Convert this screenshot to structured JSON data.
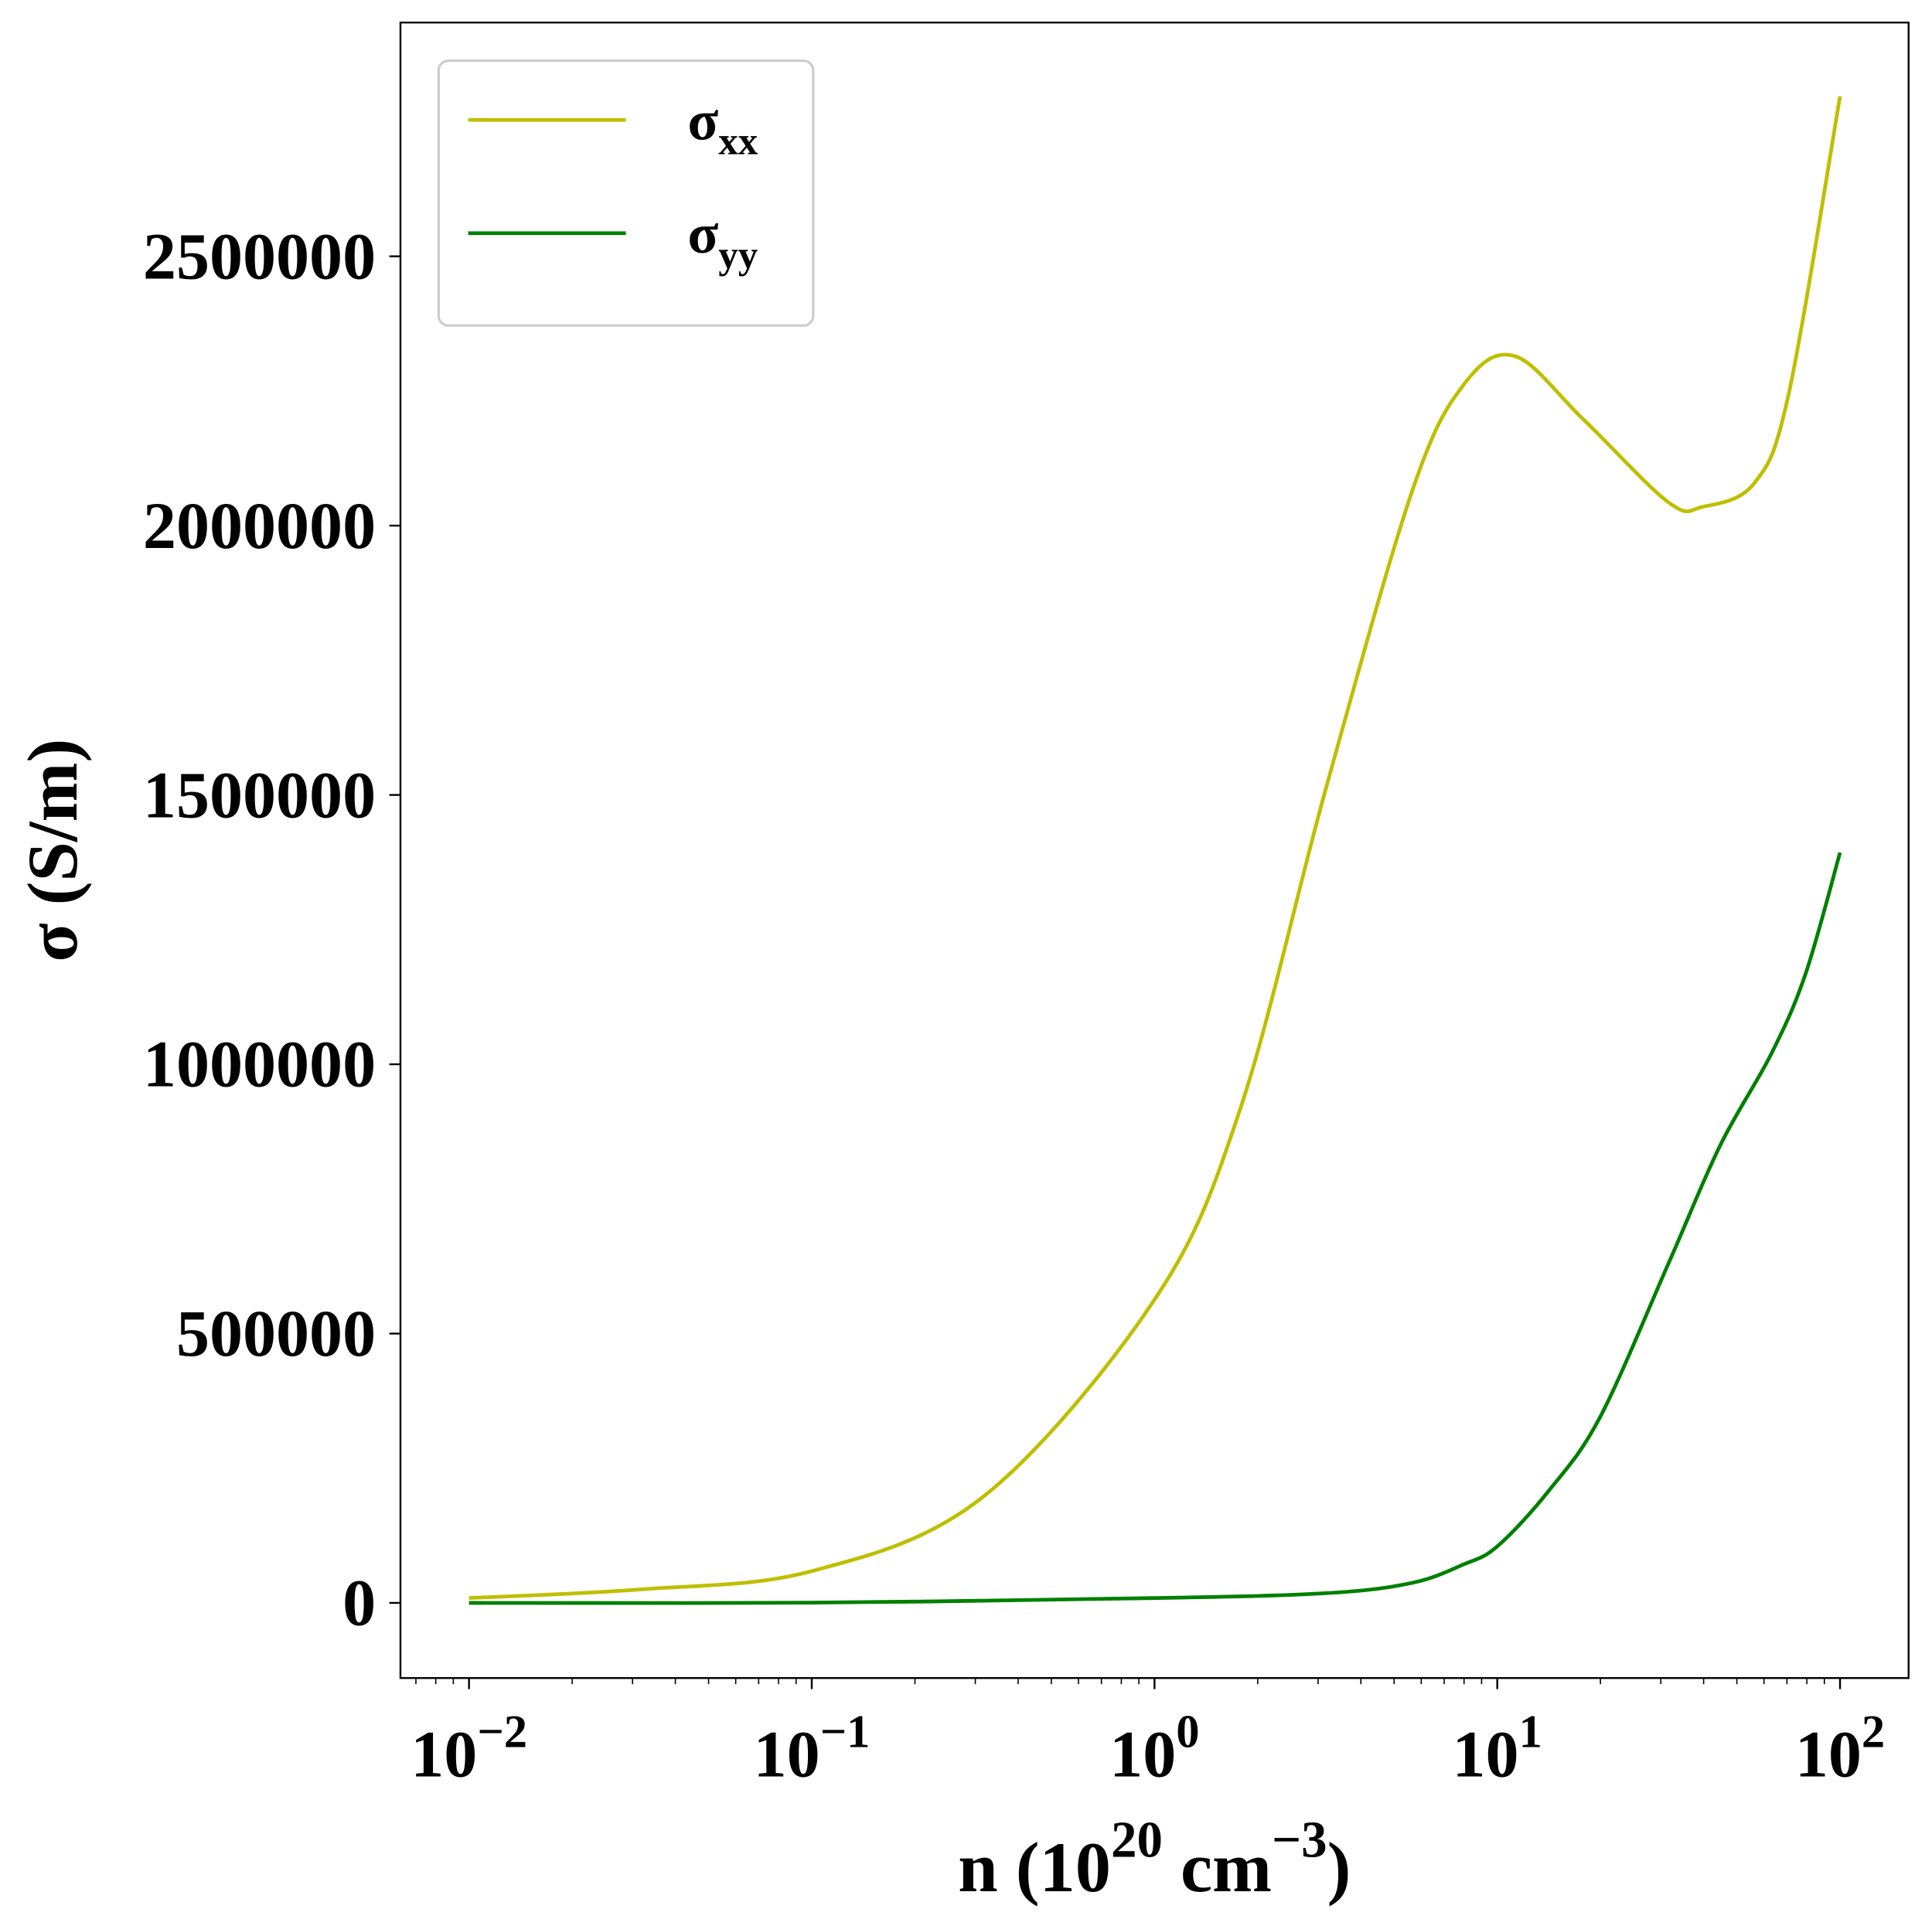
{
  "chart_data": {
    "type": "line",
    "title": "",
    "xlabel": {
      "main": "n (10",
      "sup1": "20",
      "mid": " cm",
      "sup2": "−3",
      "end": ")"
    },
    "ylabel": "σ (S/m)",
    "xscale": "log",
    "xlim_log10": [
      -2.2,
      2.2
    ],
    "ylim": [
      -139500,
      2934000
    ],
    "x_ticks": [
      {
        "exp": -2,
        "base": "10",
        "label": "−2"
      },
      {
        "exp": -1,
        "base": "10",
        "label": "−1"
      },
      {
        "exp": 0,
        "base": "10",
        "label": "0"
      },
      {
        "exp": 1,
        "base": "10",
        "label": "1"
      },
      {
        "exp": 2,
        "base": "10",
        "label": "2"
      }
    ],
    "y_ticks": [
      {
        "value": 0,
        "label": "0"
      },
      {
        "value": 500000,
        "label": "500000"
      },
      {
        "value": 1000000,
        "label": "1000000"
      },
      {
        "value": 1500000,
        "label": "1500000"
      },
      {
        "value": 2000000,
        "label": "2000000"
      },
      {
        "value": 2500000,
        "label": "2500000"
      }
    ],
    "grid": false,
    "legend_placement": "top-left",
    "series": [
      {
        "name": "σxx",
        "base": "σ",
        "sub": "xx",
        "color": "#bfbf00",
        "log10_x": [
          -2,
          -1.5,
          -1,
          -0.5,
          0,
          0.25,
          0.5,
          0.75,
          0.9,
          1.05,
          1.25,
          1.5,
          1.6,
          1.75,
          1.85,
          2.0
        ],
        "y": [
          9000,
          25000,
          59000,
          197000,
          563000,
          917000,
          1512000,
          2061000,
          2260000,
          2315000,
          2198000,
          2043000,
          2035000,
          2079000,
          2244000,
          2797000
        ]
      },
      {
        "name": "σyy",
        "base": "σ",
        "sub": "yy",
        "color": "#008000",
        "log10_x": [
          -2,
          -1,
          0,
          0.5,
          0.75,
          0.9,
          1.0,
          1.15,
          1.3,
          1.5,
          1.65,
          1.8,
          1.9,
          2.0
        ],
        "y": [
          0,
          500,
          9000,
          18000,
          37000,
          71000,
          105000,
          208000,
          345000,
          631000,
          849000,
          1020000,
          1169000,
          1393000
        ]
      }
    ]
  }
}
